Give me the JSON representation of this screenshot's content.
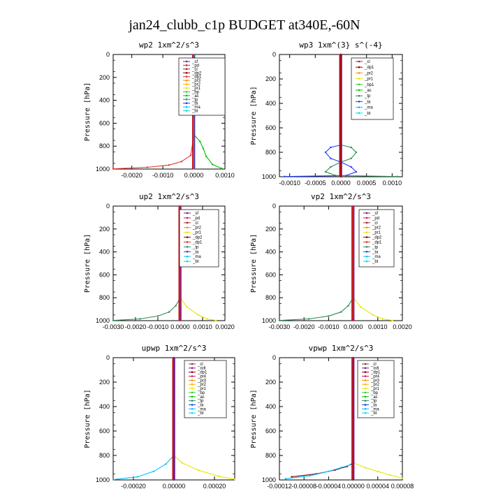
{
  "figure_title": "jan24_clubb_c1p  BUDGET at340E,-60N",
  "chart_data": [
    {
      "type": "line",
      "title": "wp2   1xm^2/s^3",
      "ylabel": "Pressure [hPa]",
      "ylim": [
        1000,
        0
      ],
      "yticks": [
        0,
        200,
        400,
        600,
        800,
        1000
      ],
      "xlim": [
        -0.0026,
        0.001
      ],
      "xticks": [
        -0.002,
        -0.001,
        0.0,
        0.001
      ],
      "xtick_labels": [
        "-0.0020",
        "-0.0010",
        "0.0000",
        "0.0010"
      ],
      "legend": [
        "_sf",
        "_pd",
        "_cl",
        "_dp2",
        "_dp1",
        "_pr3",
        "_pr2",
        "_pr1",
        "_bp",
        "_ac",
        "_tp",
        "_ta",
        "_ma",
        "_bt"
      ],
      "colors": [
        "#7a1a9a",
        "#d4145a",
        "#a02828",
        "#8b0000",
        "#e8312a",
        "#ff8c00",
        "#ffb400",
        "#e6e600",
        "#32cd32",
        "#00c000",
        "#2e8b57",
        "#1e3cff",
        "#00bfff",
        "#00e0e0"
      ],
      "series": [
        {
          "name": "_dp1",
          "values": [
            [
              -0.0026,
              998
            ],
            [
              -0.0015,
              985
            ],
            [
              -0.0008,
              965
            ],
            [
              -0.0004,
              935
            ],
            [
              -0.0001,
              880
            ],
            [
              0.0,
              700
            ],
            [
              0.0,
              0
            ]
          ]
        },
        {
          "name": "_ac",
          "values": [
            [
              0.0,
              0
            ],
            [
              0.0,
              700
            ],
            [
              0.0002,
              760
            ],
            [
              0.0003,
              820
            ],
            [
              0.0004,
              890
            ],
            [
              0.0006,
              960
            ],
            [
              0.0009,
              995
            ]
          ]
        },
        {
          "name": "_bt",
          "values": [
            [
              0.0,
              0
            ],
            [
              0.0,
              1000
            ]
          ]
        }
      ]
    },
    {
      "type": "line",
      "title": "wp3   1xm^(3} s^(-4}",
      "ylabel": "Pressure [hPa]",
      "ylim": [
        1000,
        0
      ],
      "yticks": [
        0,
        200,
        400,
        600,
        800,
        1000
      ],
      "xlim": [
        -0.0012,
        0.0012
      ],
      "xticks": [
        -0.001,
        -0.0005,
        0.0,
        0.0005,
        0.001
      ],
      "xtick_labels": [
        "-0.0010",
        "-0.0005",
        "0.0000",
        "0.0005",
        "0.0010"
      ],
      "legend": [
        "_cl",
        "_dp1",
        "_pr2",
        "_pr1",
        "_bp1",
        "_ac",
        "_tp",
        "_ta",
        "_ma",
        "_bt"
      ],
      "colors": [
        "#a02828",
        "#8b0000",
        "#ff8c00",
        "#e6e600",
        "#32cd32",
        "#00c000",
        "#2e8b57",
        "#1e3cff",
        "#00bfff",
        "#00e0e0"
      ],
      "series": [
        {
          "name": "_ta",
          "values": [
            [
              0.0,
              0
            ],
            [
              0.0,
              740
            ],
            [
              -0.0002,
              760
            ],
            [
              -0.0003,
              800
            ],
            [
              -0.0002,
              850
            ],
            [
              0.0,
              880
            ],
            [
              0.0002,
              920
            ],
            [
              0.0003,
              960
            ],
            [
              0.0001,
              990
            ],
            [
              -0.0011,
              998
            ]
          ]
        },
        {
          "name": "_tp",
          "values": [
            [
              0.0,
              0
            ],
            [
              0.0,
              740
            ],
            [
              0.0002,
              760
            ],
            [
              0.0003,
              800
            ],
            [
              0.0002,
              850
            ],
            [
              0.0,
              880
            ],
            [
              -0.0002,
              920
            ],
            [
              -0.0003,
              960
            ],
            [
              -0.0001,
              990
            ],
            [
              0.0011,
              998
            ]
          ]
        },
        {
          "name": "_dp1",
          "values": [
            [
              0.0,
              0
            ],
            [
              0.0,
              1000
            ]
          ]
        }
      ]
    },
    {
      "type": "line",
      "title": "up2   1xm^2/s^3",
      "ylabel": "Pressure [hPa]",
      "ylim": [
        1000,
        0
      ],
      "yticks": [
        0,
        200,
        400,
        600,
        800,
        1000
      ],
      "xlim": [
        -0.003,
        0.002
      ],
      "xticks": [
        -0.003,
        -0.002,
        -0.001,
        0.0,
        0.001,
        0.002
      ],
      "xtick_labels": [
        "-0.0030",
        "-0.0020",
        "-0.0010",
        "0.0000",
        "0.0010",
        "0.0020"
      ],
      "legend": [
        "_sf",
        "_pd",
        "_cl",
        "_pr2",
        "_pr1",
        "_dp2",
        "_dp1",
        "_tp",
        "_ta",
        "_ma",
        "_bt"
      ],
      "colors": [
        "#7a1a9a",
        "#d4145a",
        "#a02828",
        "#ff8c00",
        "#e6e600",
        "#8b0000",
        "#e8312a",
        "#2e8b57",
        "#1e3cff",
        "#00bfff",
        "#00e0e0"
      ],
      "series": [
        {
          "name": "_tp",
          "values": [
            [
              -0.003,
              998
            ],
            [
              -0.0018,
              985
            ],
            [
              -0.001,
              960
            ],
            [
              -0.0005,
              925
            ],
            [
              -0.0002,
              870
            ],
            [
              0.0,
              800
            ],
            [
              0.0,
              0
            ]
          ]
        },
        {
          "name": "_pr1",
          "values": [
            [
              0.0,
              0
            ],
            [
              0.0,
              800
            ],
            [
              0.0003,
              880
            ],
            [
              0.0008,
              950
            ],
            [
              0.0012,
              985
            ],
            [
              0.0016,
              998
            ]
          ]
        },
        {
          "name": "_dp1",
          "values": [
            [
              0.0,
              0
            ],
            [
              0.0,
              1000
            ]
          ]
        }
      ]
    },
    {
      "type": "line",
      "title": "vp2   1xm^2/s^3",
      "ylabel": "Pressure [hPa]",
      "ylim": [
        1000,
        0
      ],
      "yticks": [
        0,
        200,
        400,
        600,
        800,
        1000
      ],
      "xlim": [
        -0.003,
        0.002
      ],
      "xticks": [
        -0.003,
        -0.002,
        -0.001,
        0.0,
        0.001,
        0.002
      ],
      "xtick_labels": [
        "-0.0030",
        "-0.0020",
        "-0.0010",
        "0.0000",
        "0.0010",
        "0.0020"
      ],
      "legend": [
        "_sf",
        "_pd",
        "_cl",
        "_pr2",
        "_pr1",
        "_dp2",
        "_dp1",
        "_tp",
        "_ta",
        "_ma",
        "_bt"
      ],
      "colors": [
        "#7a1a9a",
        "#d4145a",
        "#a02828",
        "#ff8c00",
        "#e6e600",
        "#8b0000",
        "#e8312a",
        "#2e8b57",
        "#1e3cff",
        "#00bfff",
        "#00e0e0"
      ],
      "series": [
        {
          "name": "_tp",
          "values": [
            [
              -0.003,
              998
            ],
            [
              -0.0018,
              985
            ],
            [
              -0.001,
              960
            ],
            [
              -0.0005,
              925
            ],
            [
              -0.0002,
              870
            ],
            [
              0.0,
              800
            ],
            [
              0.0,
              0
            ]
          ]
        },
        {
          "name": "_pr1",
          "values": [
            [
              0.0,
              0
            ],
            [
              0.0,
              800
            ],
            [
              0.0003,
              880
            ],
            [
              0.0008,
              950
            ],
            [
              0.0012,
              985
            ],
            [
              0.0016,
              998
            ]
          ]
        },
        {
          "name": "_dp1",
          "values": [
            [
              0.0,
              0
            ],
            [
              0.0,
              1000
            ]
          ]
        }
      ]
    },
    {
      "type": "line",
      "title": "upwp   1xm^2/s^3",
      "ylabel": "Pressure [hPa]",
      "ylim": [
        1000,
        0
      ],
      "yticks": [
        0,
        200,
        400,
        600,
        800,
        1000
      ],
      "xlim": [
        -0.0003,
        0.0003
      ],
      "xticks": [
        -0.0002,
        0.0,
        0.0002
      ],
      "xtick_labels": [
        "-0.00020",
        "0.00000",
        "0.00020"
      ],
      "legend": [
        "_cl",
        "_mfl",
        "_dp1",
        "_pr4",
        "_pr3",
        "_pr2",
        "_pr1",
        "_bp",
        "_ac",
        "_tp",
        "_ta",
        "_ma",
        "_bt"
      ],
      "colors": [
        "#a02828",
        "#7a1a9a",
        "#8b0000",
        "#d4145a",
        "#ff8c00",
        "#ffb400",
        "#e6e600",
        "#32cd32",
        "#00c000",
        "#2e8b57",
        "#1e3cff",
        "#00bfff",
        "#00e0e0"
      ],
      "series": [
        {
          "name": "_ma",
          "values": [
            [
              -0.0003,
              998
            ],
            [
              -0.00018,
              975
            ],
            [
              -0.0001,
              930
            ],
            [
              -4e-05,
              870
            ],
            [
              0.0,
              800
            ],
            [
              0.0,
              0
            ]
          ]
        },
        {
          "name": "_pr1",
          "values": [
            [
              0.0,
              0
            ],
            [
              0.0,
              800
            ],
            [
              4e-05,
              860
            ],
            [
              0.00012,
              920
            ],
            [
              0.00022,
              970
            ],
            [
              0.0003,
              995
            ]
          ]
        },
        {
          "name": "_mfl",
          "values": [
            [
              0.0,
              0
            ],
            [
              0.0,
              1000
            ]
          ]
        }
      ]
    },
    {
      "type": "line",
      "title": "vpwp   1xm^2/s^3",
      "ylabel": "Pressure [hPa]",
      "ylim": [
        1000,
        0
      ],
      "yticks": [
        0,
        200,
        400,
        600,
        800,
        1000
      ],
      "xlim": [
        -0.00012,
        8e-05
      ],
      "xticks": [
        -0.00012,
        -8e-05,
        -4e-05,
        0.0,
        4e-05,
        8e-05
      ],
      "xtick_labels": [
        "-0.00012",
        "-0.00008",
        "-0.00004",
        "0.00000",
        "0.00004",
        "0.00008"
      ],
      "legend": [
        "_cl",
        "_mfl",
        "_dp1",
        "_pr4",
        "_pr3",
        "_pr2",
        "_pr1",
        "_bp",
        "_ac",
        "_tp",
        "_ta",
        "_ma",
        "_bt"
      ],
      "colors": [
        "#a02828",
        "#7a1a9a",
        "#8b0000",
        "#d4145a",
        "#ff8c00",
        "#ffb400",
        "#e6e600",
        "#32cd32",
        "#00c000",
        "#2e8b57",
        "#1e3cff",
        "#00bfff",
        "#00e0e0"
      ],
      "series": [
        {
          "name": "_dp1",
          "values": [
            [
              -0.0001,
              975
            ],
            [
              -6e-05,
              950
            ],
            [
              -3e-05,
              920
            ],
            [
              -1e-05,
              890
            ],
            [
              0.0,
              860
            ],
            [
              0.0,
              0
            ]
          ]
        },
        {
          "name": "_ma",
          "values": [
            [
              -0.00011,
              990
            ],
            [
              -7e-05,
              965
            ],
            [
              -4e-05,
              930
            ],
            [
              -2e-05,
              900
            ],
            [
              0.0,
              870
            ]
          ]
        },
        {
          "name": "_pr1",
          "values": [
            [
              0.0,
              0
            ],
            [
              0.0,
              860
            ],
            [
              2e-05,
              900
            ],
            [
              4e-05,
              930
            ],
            [
              6e-05,
              960
            ],
            [
              8e-05,
              985
            ]
          ]
        },
        {
          "name": "_mfl",
          "values": [
            [
              0.0,
              0
            ],
            [
              0.0,
              1000
            ]
          ]
        }
      ]
    }
  ]
}
